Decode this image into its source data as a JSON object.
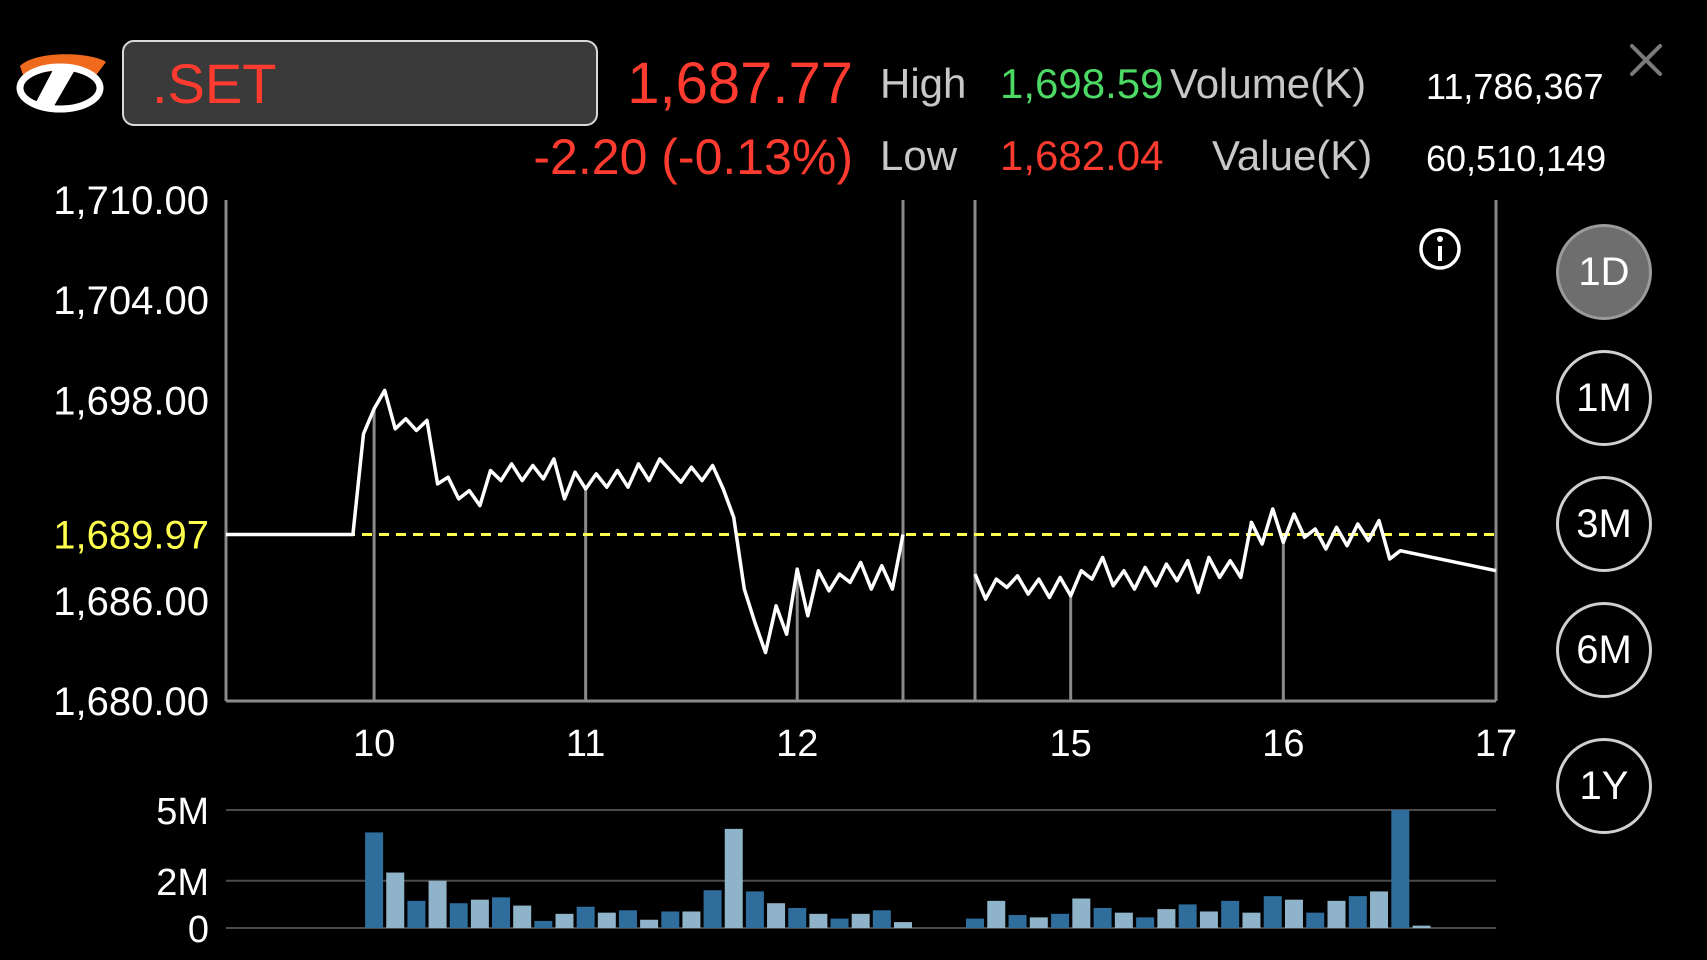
{
  "header": {
    "symbol": ".SET",
    "last": "1,687.77",
    "change": "-2.20 (-0.13%)",
    "high_label": "High",
    "high_value": "1,698.59",
    "low_label": "Low",
    "low_value": "1,682.04",
    "volume_label": "Volume(K)",
    "volume_value": "11,786,367",
    "value_label": "Value(K)",
    "value_value": "60,510,149"
  },
  "colors": {
    "down": "#ff3b30",
    "up": "#4cd964",
    "reference": "#ffff4d",
    "price_line": "#ffffff",
    "volume_dark": "#2f6d9c",
    "volume_light": "#8fb3c9"
  },
  "icons": {
    "logo": "brand-logo-icon",
    "close": "close-icon",
    "info": "info-icon"
  },
  "range_buttons": [
    {
      "label": "1D",
      "active": true
    },
    {
      "label": "1M",
      "active": false
    },
    {
      "label": "3M",
      "active": false
    },
    {
      "label": "6M",
      "active": false
    },
    {
      "label": "1Y",
      "active": false
    }
  ],
  "chart_data": [
    {
      "type": "line",
      "title": "",
      "xlabel": "",
      "ylabel": "",
      "x_ticks": [
        "10",
        "11",
        "12",
        "15",
        "16",
        "17"
      ],
      "y_ticks": [
        "1,710.00",
        "1,704.00",
        "1,698.00",
        "1,686.00",
        "1,680.00"
      ],
      "ylim": [
        1680,
        1710
      ],
      "grid": true,
      "reference_line": {
        "value": 1689.97,
        "label": "1,689.97"
      },
      "sessions": [
        {
          "name": "",
          "x_range": [
            9.3,
            12.5
          ],
          "x": [
            9.3,
            9.35,
            9.45,
            9.55,
            9.65,
            9.75,
            9.8,
            9.85,
            9.9,
            9.95,
            10.0,
            10.05,
            10.1,
            10.15,
            10.2,
            10.25,
            10.3,
            10.35,
            10.4,
            10.45,
            10.5,
            10.55,
            10.6,
            10.65,
            10.7,
            10.75,
            10.8,
            10.85,
            10.9,
            10.95,
            11.0,
            11.05,
            11.1,
            11.15,
            11.2,
            11.25,
            11.3,
            11.35,
            11.4,
            11.45,
            11.5,
            11.55,
            11.6,
            11.65,
            11.7,
            11.75,
            11.8,
            11.85,
            11.9,
            11.95,
            12.0,
            12.05,
            12.1,
            12.15,
            12.2,
            12.25,
            12.3,
            12.35,
            12.4,
            12.45,
            12.5
          ],
          "y": [
            1689.97,
            1689.97,
            1689.97,
            1689.97,
            1689.97,
            1689.97,
            1689.97,
            1689.97,
            1689.97,
            1696.0,
            1697.5,
            1698.6,
            1696.3,
            1696.9,
            1696.2,
            1696.8,
            1693.0,
            1693.4,
            1692.1,
            1692.6,
            1691.7,
            1693.8,
            1693.2,
            1694.2,
            1693.2,
            1694.1,
            1693.3,
            1694.5,
            1692.1,
            1693.7,
            1692.7,
            1693.6,
            1692.8,
            1693.8,
            1692.8,
            1694.2,
            1693.2,
            1694.5,
            1693.8,
            1693.1,
            1694.0,
            1693.2,
            1694.1,
            1692.7,
            1691.0,
            1686.7,
            1684.7,
            1682.9,
            1685.7,
            1684.0,
            1687.9,
            1685.1,
            1687.8,
            1686.6,
            1687.6,
            1687.1,
            1688.3,
            1686.7,
            1688.1,
            1686.7,
            1689.97
          ]
        },
        {
          "name": "",
          "x_range": [
            14.55,
            17.0
          ],
          "x": [
            14.55,
            14.6,
            14.65,
            14.7,
            14.75,
            14.8,
            14.85,
            14.9,
            14.95,
            15.0,
            15.05,
            15.1,
            15.15,
            15.2,
            15.25,
            15.3,
            15.35,
            15.4,
            15.45,
            15.5,
            15.55,
            15.6,
            15.65,
            15.7,
            15.75,
            15.8,
            15.85,
            15.9,
            15.95,
            16.0,
            16.05,
            16.1,
            16.15,
            16.2,
            16.25,
            16.3,
            16.35,
            16.4,
            16.45,
            16.5,
            16.55,
            17.0
          ],
          "y": [
            1687.6,
            1686.1,
            1687.3,
            1686.8,
            1687.5,
            1686.4,
            1687.3,
            1686.2,
            1687.4,
            1686.3,
            1687.8,
            1687.3,
            1688.6,
            1686.9,
            1687.8,
            1686.7,
            1688.0,
            1686.9,
            1688.2,
            1687.2,
            1688.4,
            1686.5,
            1688.6,
            1687.4,
            1688.4,
            1687.4,
            1690.7,
            1689.4,
            1691.5,
            1689.5,
            1691.2,
            1689.8,
            1690.3,
            1689.1,
            1690.4,
            1689.3,
            1690.6,
            1689.6,
            1690.8,
            1688.5,
            1689.0,
            1687.8
          ]
        }
      ]
    },
    {
      "type": "bar",
      "title": "",
      "xlabel": "",
      "ylabel": "",
      "y_ticks": [
        "5M",
        "2M",
        "0"
      ],
      "ylim": [
        0,
        5
      ],
      "grid": true,
      "series": [
        {
          "name": "",
          "x": [
            10.0,
            10.1,
            10.2,
            10.3,
            10.4,
            10.5,
            10.6,
            10.7,
            10.8,
            10.9,
            11.0,
            11.1,
            11.2,
            11.3,
            11.4,
            11.5,
            11.6,
            11.7,
            11.8,
            11.9,
            12.0,
            12.1,
            12.2,
            12.3,
            12.4,
            12.5,
            14.55,
            14.65,
            14.75,
            14.85,
            14.95,
            15.05,
            15.15,
            15.25,
            15.35,
            15.45,
            15.55,
            15.65,
            15.75,
            15.85,
            15.95,
            16.05,
            16.15,
            16.25,
            16.35,
            16.45,
            16.55,
            16.65
          ],
          "values": [
            4.05,
            2.35,
            1.15,
            2.0,
            1.05,
            1.2,
            1.3,
            0.95,
            0.3,
            0.6,
            0.9,
            0.65,
            0.75,
            0.35,
            0.7,
            0.7,
            1.6,
            4.2,
            1.55,
            1.05,
            0.85,
            0.6,
            0.4,
            0.6,
            0.75,
            0.25,
            0.4,
            1.15,
            0.55,
            0.45,
            0.6,
            1.25,
            0.85,
            0.65,
            0.45,
            0.8,
            1.0,
            0.7,
            1.15,
            0.65,
            1.35,
            1.2,
            0.65,
            1.15,
            1.35,
            1.55,
            5.0,
            0.1
          ]
        }
      ]
    }
  ]
}
